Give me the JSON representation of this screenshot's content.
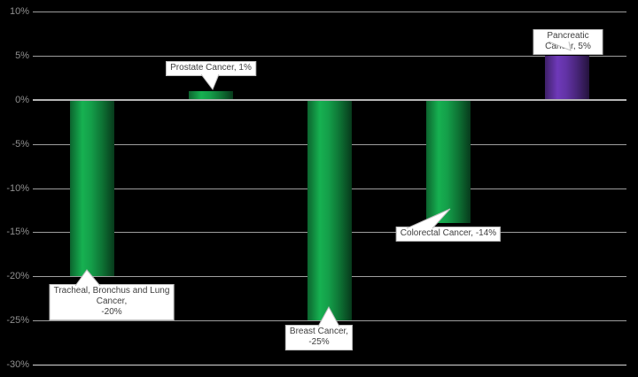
{
  "chart_data": {
    "type": "bar",
    "title": "",
    "categories": [
      "Tracheal, Bronchus and Lung Cancer",
      "Prostate Cancer",
      "Breast Cancer",
      "Colorectal Cancer",
      "Pancreatic Cancer"
    ],
    "values": [
      -20,
      1,
      -25,
      -14,
      5
    ],
    "unit": "%",
    "data_labels": [
      "Tracheal, Bronchus and Lung\nCancer,\n-20%",
      "Prostate Cancer, 1%",
      "Breast Cancer,\n-25%",
      "Colorectal Cancer, -14%",
      "Pancreatic Cancer, 5%"
    ],
    "bar_color_keys": [
      "green",
      "green",
      "green",
      "green",
      "purple"
    ],
    "ylim": [
      -30,
      10
    ],
    "yticks": [
      {
        "value": 10,
        "label": "10%"
      },
      {
        "value": 5,
        "label": "5%"
      },
      {
        "value": 0,
        "label": "0%"
      },
      {
        "value": -5,
        "label": "-5%"
      },
      {
        "value": -10,
        "label": "-10%"
      },
      {
        "value": -15,
        "label": "-15%"
      },
      {
        "value": -20,
        "label": "-20%"
      },
      {
        "value": -25,
        "label": "-25%"
      },
      {
        "value": -30,
        "label": "-30%"
      }
    ],
    "grid": true,
    "legend": "none",
    "colors": {
      "background": "#000000",
      "gridline": "#9e9e9e",
      "zero_line": "#b5b5b5",
      "bottom_line": "#d9d9d9",
      "tick_label": "#8f8f8f",
      "green": "#14a14a",
      "purple": "#6434a8",
      "callout_bg": "#ffffff",
      "callout_border": "#bfbfbf",
      "callout_text": "#3f3f3f"
    }
  }
}
